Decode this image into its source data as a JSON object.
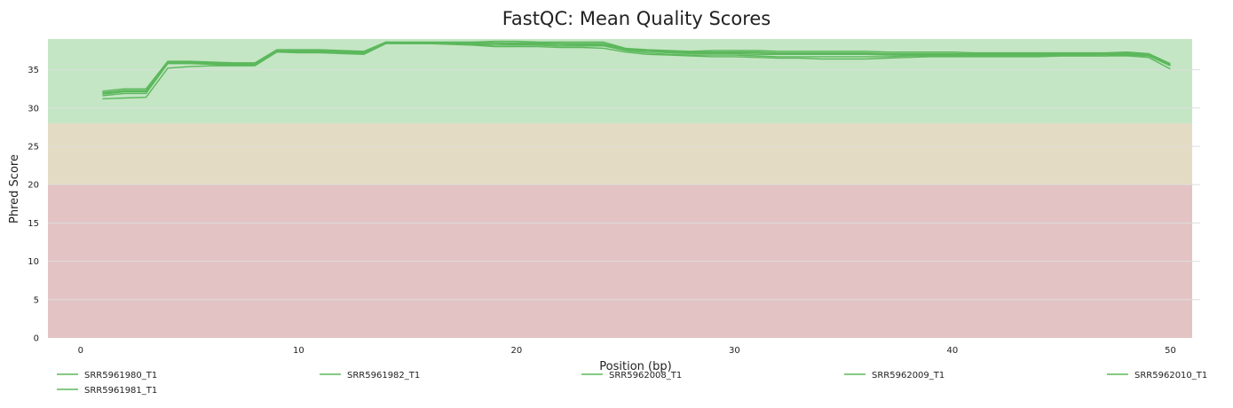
{
  "chart_data": {
    "type": "line",
    "title": "FastQC: Mean Quality Scores",
    "xlabel": "Position (bp)",
    "ylabel": "Phred Score",
    "xlim": [
      -1.5,
      51
    ],
    "ylim": [
      0,
      39
    ],
    "x_ticks": [
      "0",
      "10",
      "20",
      "30",
      "40",
      "50"
    ],
    "y_ticks": [
      "0",
      "5",
      "10",
      "15",
      "20",
      "25",
      "30",
      "35"
    ],
    "grid": true,
    "legend_position": "bottom",
    "bands": [
      {
        "from": 0,
        "to": 20,
        "color": "#e3c3c3"
      },
      {
        "from": 20,
        "to": 28,
        "color": "#e4dbc4"
      },
      {
        "from": 28,
        "to": 39,
        "color": "#c4e6c4"
      }
    ],
    "line_color": "#5cb85c",
    "x": [
      1,
      2,
      3,
      4,
      5,
      6,
      7,
      8,
      9,
      10,
      11,
      12,
      13,
      14,
      15,
      16,
      17,
      18,
      19,
      20,
      21,
      22,
      23,
      24,
      25,
      26,
      27,
      28,
      29,
      30,
      31,
      32,
      33,
      34,
      35,
      36,
      37,
      38,
      39,
      40,
      41,
      42,
      43,
      44,
      45,
      46,
      47,
      48,
      49,
      50
    ],
    "series": [
      {
        "name": "SRR5961980_T1",
        "values": [
          32.2,
          32.5,
          32.5,
          36.1,
          36.1,
          36.0,
          35.9,
          35.9,
          37.6,
          37.6,
          37.6,
          37.5,
          37.4,
          38.6,
          38.6,
          38.6,
          38.6,
          38.6,
          38.7,
          38.7,
          38.6,
          38.6,
          38.6,
          38.6,
          37.8,
          37.6,
          37.5,
          37.4,
          37.5,
          37.5,
          37.5,
          37.4,
          37.4,
          37.4,
          37.4,
          37.4,
          37.3,
          37.3,
          37.3,
          37.3,
          37.2,
          37.2,
          37.2,
          37.2,
          37.2,
          37.2,
          37.2,
          37.3,
          37.1,
          35.8
        ]
      },
      {
        "name": "SRR5961982_T1",
        "values": [
          32.0,
          32.3,
          32.3,
          36.0,
          36.0,
          35.9,
          35.8,
          35.8,
          37.5,
          37.5,
          37.5,
          37.4,
          37.3,
          38.6,
          38.5,
          38.5,
          38.5,
          38.5,
          38.5,
          38.5,
          38.5,
          38.4,
          38.4,
          38.4,
          37.7,
          37.5,
          37.4,
          37.3,
          37.3,
          37.3,
          37.3,
          37.2,
          37.2,
          37.2,
          37.2,
          37.2,
          37.1,
          37.1,
          37.1,
          37.1,
          37.1,
          37.1,
          37.1,
          37.1,
          37.1,
          37.1,
          37.1,
          37.2,
          37.0,
          35.7
        ]
      },
      {
        "name": "SRR5962008_T1",
        "values": [
          31.8,
          32.1,
          32.1,
          35.9,
          35.9,
          35.8,
          35.7,
          35.7,
          37.4,
          37.4,
          37.4,
          37.3,
          37.2,
          38.5,
          38.5,
          38.5,
          38.4,
          38.4,
          38.4,
          38.3,
          38.3,
          38.3,
          38.2,
          38.2,
          37.6,
          37.4,
          37.2,
          37.1,
          37.1,
          37.1,
          37.0,
          37.0,
          37.0,
          37.0,
          37.0,
          37.0,
          36.9,
          36.9,
          36.9,
          36.9,
          36.9,
          36.9,
          36.9,
          36.9,
          36.9,
          36.9,
          37.0,
          37.0,
          36.9,
          35.6
        ]
      },
      {
        "name": "SRR5962009_T1",
        "values": [
          31.6,
          31.9,
          31.9,
          35.8,
          35.8,
          35.7,
          35.6,
          35.6,
          37.3,
          37.3,
          37.3,
          37.2,
          37.1,
          38.5,
          38.4,
          38.4,
          38.4,
          38.3,
          38.2,
          38.2,
          38.2,
          38.1,
          38.1,
          38.1,
          37.5,
          37.2,
          37.0,
          36.9,
          36.9,
          36.9,
          36.8,
          36.7,
          36.7,
          36.7,
          36.7,
          36.7,
          36.7,
          36.8,
          36.8,
          36.8,
          36.8,
          36.8,
          36.8,
          36.8,
          36.8,
          36.8,
          36.8,
          36.9,
          36.8,
          35.5
        ]
      },
      {
        "name": "SRR5962010_T1",
        "values": [
          31.2,
          31.3,
          31.4,
          35.2,
          35.4,
          35.5,
          35.5,
          35.5,
          37.3,
          37.2,
          37.2,
          37.1,
          37.0,
          38.4,
          38.4,
          38.4,
          38.3,
          38.2,
          38.0,
          38.0,
          38.0,
          37.9,
          37.9,
          37.8,
          37.3,
          37.0,
          36.9,
          36.8,
          36.7,
          36.7,
          36.6,
          36.5,
          36.5,
          36.4,
          36.4,
          36.4,
          36.5,
          36.6,
          36.7,
          36.7,
          36.7,
          36.7,
          36.7,
          36.7,
          36.8,
          36.8,
          36.8,
          36.8,
          36.6,
          35.1
        ]
      },
      {
        "name": "SRR5961981_T1",
        "values": [
          31.9,
          32.2,
          32.2,
          36.0,
          36.0,
          35.9,
          35.8,
          35.8,
          37.5,
          37.5,
          37.5,
          37.4,
          37.3,
          38.5,
          38.5,
          38.5,
          38.5,
          38.4,
          38.5,
          38.4,
          38.4,
          38.4,
          38.3,
          38.3,
          37.7,
          37.5,
          37.3,
          37.2,
          37.2,
          37.2,
          37.2,
          37.1,
          37.1,
          37.1,
          37.1,
          37.1,
          37.0,
          37.0,
          37.0,
          37.0,
          37.0,
          37.0,
          37.0,
          37.0,
          37.0,
          37.0,
          37.1,
          37.1,
          36.9,
          35.6
        ]
      }
    ]
  }
}
